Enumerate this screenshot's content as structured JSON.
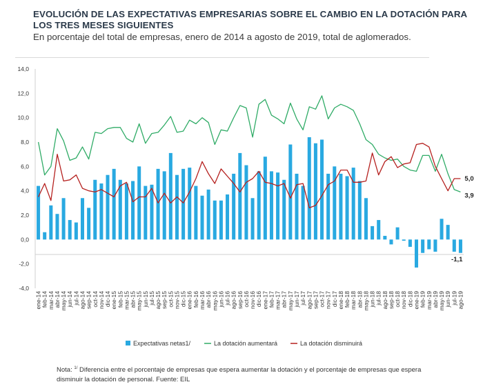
{
  "title": "EVOLUCIÓN DE LAS EXPECTATIVAS EMPRESARIAS SOBRE EL CAMBIO EN LA DOTACIÓN PARA LOS TRES MESES SIGUIENTES",
  "subtitle": "En porcentaje del total de empresas, enero de 2014 a agosto de 2019, total de aglomerados.",
  "note": {
    "prefix": "Nota: ",
    "sup": "1/",
    "text": " Diferencia entre el porcentaje de empresas que espera aumentar la dotación y el porcentaje de empresas que espera disminuir la dotación de personal. Fuente: EIL"
  },
  "chart_data": {
    "type": "bar",
    "ylim": [
      -4,
      14
    ],
    "yticks": [
      "14,0",
      "12,0",
      "10,0",
      "8,0",
      "6,0",
      "4,0",
      "2,0",
      "0,0",
      "-2,0",
      "-4,0"
    ],
    "grid": false,
    "legend_position": "bottom",
    "categories": [
      "ene-14",
      "feb-14",
      "mar-14",
      "abr-14",
      "may-14",
      "jun-14",
      "jul-14",
      "ago-14",
      "sep-14",
      "oct-14",
      "nov-14",
      "dic-14",
      "ene-15",
      "feb-15",
      "mar-15",
      "abr-15",
      "may-15",
      "jun-15",
      "jul-15",
      "ago-15",
      "sep-15",
      "oct-15",
      "nov-15",
      "dic-15",
      "ene-16",
      "feb-16",
      "mar-16",
      "abr-16",
      "may-16",
      "jun-16",
      "jul-16",
      "ago-16",
      "sep-16",
      "oct-16",
      "nov-16",
      "dic-16",
      "ene-17",
      "feb-17",
      "mar-17",
      "abr-17",
      "may-17",
      "jun-17",
      "jul-17",
      "ago-17",
      "sep-17",
      "oct-17",
      "nov-17",
      "dic-17",
      "ene-18",
      "feb-18",
      "mar-18",
      "abr-18",
      "may-18",
      "jun-18",
      "jul-18",
      "ago-18",
      "sep-18",
      "oct-18",
      "nov-18",
      "dic-18",
      "ene-19",
      "feb-19",
      "mar-19",
      "abr-19",
      "may-19",
      "jun-19",
      "jul-19",
      "ago-19"
    ],
    "series": [
      {
        "name": "Expectativas netas1/",
        "type": "bar",
        "color": "#29a9e1",
        "values": [
          4.4,
          0.6,
          2.8,
          2.1,
          3.4,
          1.6,
          1.4,
          3.4,
          2.6,
          4.9,
          4.6,
          5.3,
          5.8,
          4.9,
          4.6,
          4.8,
          6.0,
          4.4,
          4.5,
          5.8,
          5.6,
          7.1,
          5.3,
          5.8,
          5.9,
          4.4,
          3.6,
          4.1,
          3.2,
          3.2,
          3.7,
          5.4,
          7.1,
          6.1,
          3.4,
          5.6,
          6.8,
          5.6,
          5.5,
          4.9,
          7.8,
          5.4,
          4.4,
          8.4,
          7.9,
          8.2,
          5.4,
          6.0,
          5.4,
          5.2,
          5.9,
          4.8,
          3.4,
          1.1,
          1.6,
          0.3,
          -0.4,
          1.0,
          -0.1,
          -0.6,
          -2.3,
          -1.1,
          -0.8,
          -1.0,
          1.7,
          1.2,
          -1.0,
          -1.1
        ]
      },
      {
        "name": "La dotación aumentará",
        "type": "line",
        "color": "#2fab66",
        "values": [
          8.0,
          5.3,
          6.0,
          9.1,
          8.1,
          6.5,
          6.7,
          7.6,
          6.6,
          8.8,
          8.7,
          9.1,
          9.2,
          9.2,
          8.3,
          8.0,
          9.5,
          7.9,
          8.7,
          8.8,
          9.4,
          10.1,
          8.8,
          8.9,
          9.8,
          9.5,
          10.0,
          9.6,
          7.8,
          9.0,
          8.9,
          10.0,
          11.0,
          10.8,
          8.4,
          11.1,
          11.5,
          10.2,
          9.9,
          9.5,
          11.2,
          9.9,
          9.0,
          10.9,
          10.7,
          11.8,
          9.9,
          10.8,
          11.1,
          10.9,
          10.6,
          9.5,
          8.2,
          7.8,
          7.0,
          6.7,
          6.5,
          6.6,
          6.0,
          5.7,
          5.6,
          6.9,
          6.9,
          5.6,
          7.0,
          5.4,
          4.1,
          3.9
        ]
      },
      {
        "name": "La dotación disminuirá",
        "type": "line",
        "color": "#b5201e",
        "values": [
          3.5,
          4.6,
          3.2,
          7.0,
          4.8,
          4.9,
          5.3,
          4.2,
          4.0,
          3.9,
          4.1,
          3.8,
          3.5,
          4.4,
          4.7,
          3.1,
          3.5,
          3.5,
          4.2,
          3.0,
          3.8,
          3.0,
          3.5,
          3.0,
          3.9,
          5.0,
          6.4,
          5.4,
          4.6,
          5.8,
          5.2,
          4.6,
          3.9,
          4.7,
          5.0,
          5.6,
          4.7,
          4.6,
          4.4,
          4.6,
          3.4,
          4.5,
          4.6,
          2.6,
          2.8,
          3.6,
          4.5,
          4.8,
          5.7,
          5.7,
          4.7,
          4.7,
          4.8,
          7.1,
          5.3,
          6.4,
          6.8,
          5.9,
          6.2,
          6.3,
          7.8,
          7.9,
          7.6,
          6.0,
          5.0,
          4.0,
          5.0,
          5.0
        ]
      }
    ],
    "end_labels": [
      "5,0",
      "3,9",
      "-1,1"
    ]
  }
}
